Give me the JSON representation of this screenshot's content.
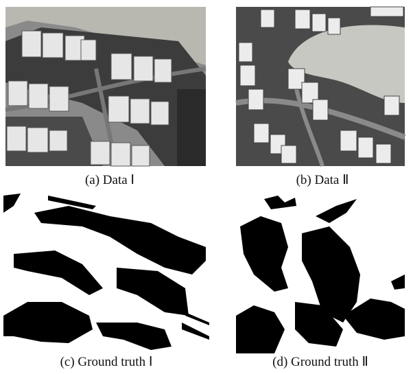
{
  "figure": {
    "panels": [
      {
        "caption": "(a) Data Ⅰ"
      },
      {
        "caption": "(b) Data Ⅱ"
      },
      {
        "caption": "(c) Ground truth Ⅰ"
      },
      {
        "caption": "(d) Ground truth Ⅱ"
      }
    ]
  }
}
